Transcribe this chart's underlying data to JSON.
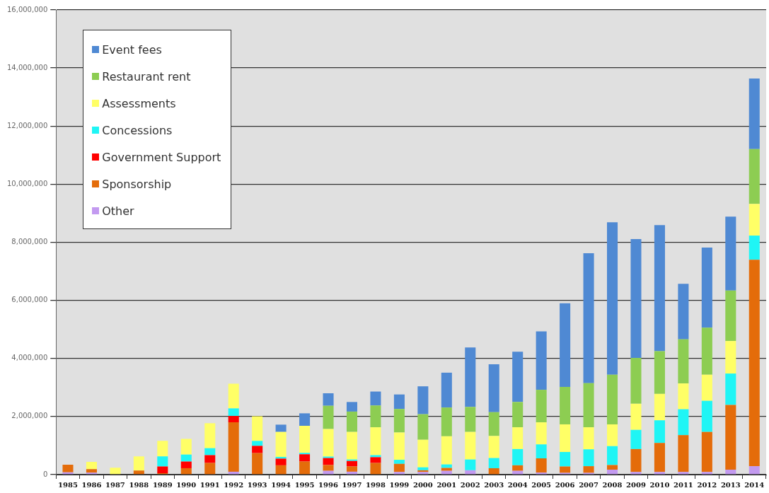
{
  "chart_data": {
    "type": "bar",
    "stacked": true,
    "legend": "top left",
    "grid": "y",
    "categories": [
      "1985",
      "1986",
      "1987",
      "1988",
      "1989",
      "1990",
      "1991",
      "1992",
      "1993",
      "1994",
      "1995",
      "1996",
      "1997",
      "1998",
      "1999",
      "2000",
      "2001",
      "2002",
      "2003",
      "2004",
      "2005",
      "2006",
      "2007",
      "2008",
      "2009",
      "2010",
      "2011",
      "2012",
      "2013",
      "2014"
    ],
    "ylim": [
      0,
      16000000
    ],
    "yticks": [
      0,
      {
        "value": 2000000,
        "label": "2,000,000"
      },
      {
        "value": 4000000,
        "label": "4,000,000"
      },
      {
        "value": 6000000,
        "label": "6,000,000"
      },
      {
        "value": 8000000,
        "label": "8,000,000"
      },
      {
        "value": 10000000,
        "label": "10,000,000"
      },
      {
        "value": 12000000,
        "label": "12,000,000"
      },
      {
        "value": 14000000,
        "label": "14,000,000"
      },
      {
        "value": 16000000,
        "label": "16,000,000"
      }
    ],
    "series": [
      {
        "name": "Other",
        "color": "#c39af0",
        "values": [
          80000,
          70000,
          0,
          0,
          0,
          null,
          0,
          100000,
          0,
          0,
          0,
          130000,
          100000,
          0,
          90000,
          90000,
          130000,
          150000,
          null,
          130000,
          70000,
          60000,
          60000,
          170000,
          90000,
          90000,
          90000,
          90000,
          170000,
          290000
        ]
      },
      {
        "name": "Sponsorship",
        "color": "#e46c0a",
        "values": [
          260000,
          120000,
          0,
          140000,
          50000,
          220000,
          400000,
          1700000,
          740000,
          320000,
          450000,
          200000,
          180000,
          400000,
          280000,
          60000,
          100000,
          0,
          220000,
          190000,
          490000,
          220000,
          230000,
          160000,
          790000,
          1000000,
          1270000,
          1380000,
          2230000,
          7110000
        ]
      },
      {
        "name": "Government Support",
        "color": "#ff0000",
        "values": [
          0,
          0,
          0,
          0,
          230000,
          230000,
          270000,
          220000,
          250000,
          230000,
          250000,
          240000,
          190000,
          200000,
          0,
          0,
          0,
          0,
          0,
          0,
          0,
          0,
          0,
          0,
          0,
          0,
          0,
          0,
          0,
          0
        ]
      },
      {
        "name": "Concessions",
        "color": "#1ff5f5",
        "values": [
          0,
          0,
          0,
          0,
          350000,
          240000,
          240000,
          260000,
          170000,
          60000,
          50000,
          50000,
          50000,
          70000,
          140000,
          100000,
          120000,
          370000,
          350000,
          560000,
          480000,
          500000,
          580000,
          650000,
          660000,
          780000,
          890000,
          1070000,
          1080000,
          830000
        ]
      },
      {
        "name": "Assessments",
        "color": "#ffff66",
        "values": [
          0,
          250000,
          240000,
          490000,
          530000,
          540000,
          860000,
          850000,
          850000,
          860000,
          930000,
          950000,
          950000,
          960000,
          940000,
          950000,
          970000,
          950000,
          760000,
          750000,
          760000,
          950000,
          760000,
          750000,
          900000,
          910000,
          890000,
          900000,
          1120000,
          1090000
        ]
      },
      {
        "name": "Restaurant rent",
        "color": "#8dcd52",
        "values": [
          0,
          0,
          0,
          0,
          0,
          0,
          0,
          0,
          0,
          0,
          0,
          800000,
          700000,
          750000,
          810000,
          880000,
          990000,
          860000,
          820000,
          870000,
          1120000,
          1290000,
          1520000,
          1710000,
          1580000,
          1470000,
          1520000,
          1620000,
          1740000,
          1890000
        ]
      },
      {
        "name": "Event fees",
        "color": "#4f89d3",
        "values": [
          0,
          0,
          0,
          0,
          0,
          0,
          0,
          0,
          0,
          250000,
          430000,
          430000,
          330000,
          480000,
          500000,
          960000,
          1200000,
          2050000,
          1650000,
          1730000,
          2010000,
          2880000,
          4470000,
          5250000,
          4090000,
          4340000,
          1910000,
          2760000,
          2540000,
          2430000
        ]
      }
    ]
  }
}
